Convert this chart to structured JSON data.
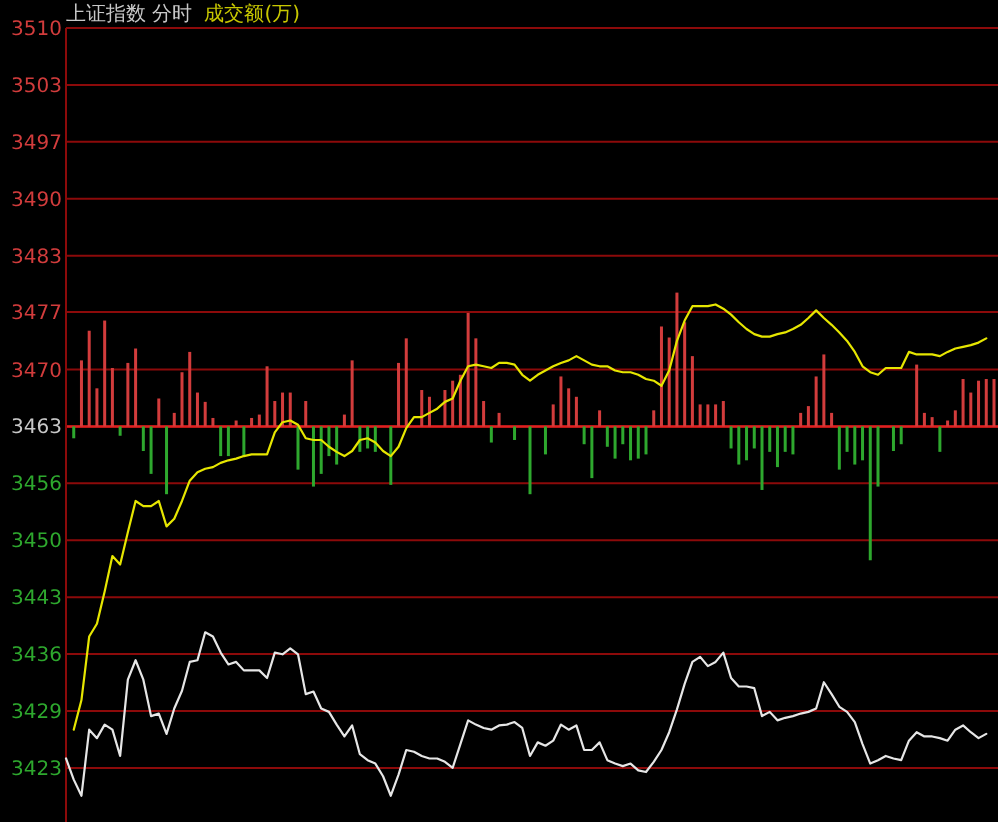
{
  "chart_data": {
    "type": "line",
    "title": "上证指数 分时",
    "annotations": [
      "成交额(万)"
    ],
    "categories": [
      null,
      null,
      null,
      null,
      null,
      null,
      null,
      null,
      null,
      null,
      null,
      null,
      null,
      null,
      null,
      null,
      null,
      null,
      null,
      null,
      null,
      null,
      null,
      null,
      null,
      null,
      null,
      null,
      null,
      null,
      null,
      null,
      null,
      null,
      null,
      null,
      null,
      null,
      null,
      null,
      null,
      null,
      null,
      null,
      null,
      null,
      null,
      null,
      null,
      null,
      null,
      null,
      null,
      null,
      null,
      null,
      null,
      null,
      null,
      null,
      null,
      null,
      null,
      null,
      null,
      null,
      null,
      null,
      null,
      null,
      null,
      null,
      null,
      null,
      null,
      null,
      null,
      null,
      null,
      null,
      null,
      null,
      null,
      null,
      null,
      null,
      null,
      null,
      null,
      null,
      null,
      null,
      null,
      null,
      null,
      null,
      null,
      null,
      null,
      null,
      null,
      null,
      null,
      null,
      null,
      null,
      null,
      null,
      null,
      null,
      null,
      null,
      null,
      null,
      null,
      null,
      null,
      null,
      null,
      null,
      null
    ],
    "ylim": [
      3416.3,
      3510.04
    ],
    "yticks": [
      {
        "value": 3422.68,
        "label": "3423"
      },
      {
        "value": 3429.4,
        "label": "3429"
      },
      {
        "value": 3436.12,
        "label": "3436"
      },
      {
        "value": 3442.84,
        "label": "3443"
      },
      {
        "value": 3449.56,
        "label": "3450"
      },
      {
        "value": 3456.28,
        "label": "3456"
      },
      3463,
      {
        "value": 3469.72,
        "label": "3470"
      },
      {
        "value": 3476.5,
        "label": "3477"
      },
      {
        "value": 3483.16,
        "label": "3483"
      },
      {
        "value": 3489.88,
        "label": "3490"
      },
      {
        "value": 3496.6,
        "label": "3497"
      },
      {
        "value": 3503.32,
        "label": "3503"
      },
      {
        "value": 3510.04,
        "label": "3510"
      }
    ],
    "grid": "y",
    "marker": "none",
    "line_style": "solid",
    "ref_lines": [
      {
        "axis": "y",
        "value": 3463,
        "color": "#e02020"
      }
    ],
    "series": [
      {
        "type": "bar",
        "values": [
          null,
          -1.4,
          7.8,
          11.3,
          4.5,
          12.5,
          6.9,
          -1.1,
          7.5,
          9.2,
          -2.9,
          -5.6,
          3.3,
          -8.0,
          1.6,
          6.4,
          8.8,
          4.0,
          2.9,
          1.0,
          -3.5,
          -3.5,
          0.7,
          -3.5,
          1.0,
          1.4,
          7.1,
          3.0,
          4.0,
          4.0,
          -5.1,
          3.0,
          -7.1,
          -5.6,
          -3.5,
          -4.5,
          1.4,
          7.8,
          -3.0,
          -2.6,
          -3.0,
          null,
          -6.9,
          7.5,
          10.4,
          null,
          4.3,
          3.5,
          null,
          4.3,
          5.4,
          6.1,
          13.4,
          10.4,
          3.0,
          -1.9,
          1.6,
          null,
          -1.6,
          null,
          -8.0,
          null,
          -3.3,
          2.6,
          5.9,
          4.5,
          3.5,
          -2.1,
          -6.1,
          1.9,
          -2.4,
          -3.8,
          -2.1,
          -4.0,
          -3.8,
          -3.3,
          1.9,
          11.8,
          10.5,
          15.8,
          12.3,
          8.3,
          2.6,
          2.6,
          2.6,
          3.0,
          -2.6,
          -4.5,
          -4.0,
          -2.6,
          -7.5,
          -3.0,
          -4.8,
          -3.0,
          -3.3,
          1.6,
          2.4,
          5.9,
          8.5,
          1.6,
          -5.1,
          -3.0,
          -4.5,
          -4.0,
          -15.8,
          -7.1,
          null,
          -2.9,
          -2.1,
          null,
          7.3,
          1.6,
          1.1,
          -3.0,
          0.7,
          1.9,
          5.6,
          4.0,
          5.4,
          5.6,
          5.6
        ],
        "base": [
          null,
          3463,
          3463,
          3463,
          3463,
          3463,
          3463,
          3463,
          3463,
          3463,
          3463,
          3463,
          3463,
          3463,
          3463,
          3463,
          3463,
          3463,
          3463,
          3463,
          3463,
          3463,
          3463,
          3463,
          3463,
          3463,
          3463,
          3463,
          3463,
          3463,
          3463,
          3463,
          3463,
          3463,
          3463,
          3463,
          3463,
          3463,
          3463,
          3463,
          3463,
          null,
          3463,
          3463,
          3463,
          null,
          3463,
          3463,
          null,
          3463,
          3463,
          3463,
          3463,
          3463,
          3463,
          3463,
          3463,
          null,
          3463,
          null,
          3463,
          null,
          3463,
          3463,
          3463,
          3463,
          3463,
          3463,
          3463,
          3463,
          3463,
          3463,
          3463,
          3463,
          3463,
          3463,
          3463,
          3463,
          3463,
          3463,
          3463,
          3463,
          3463,
          3463,
          3463,
          3463,
          3463,
          3463,
          3463,
          3463,
          3463,
          3463,
          3463,
          3463,
          3463,
          3463,
          3463,
          3463,
          3463,
          3463,
          3463,
          3463,
          3463,
          3463,
          3463,
          3463,
          null,
          3463,
          3463,
          null,
          3463,
          3463,
          3463,
          3463,
          3463,
          3463,
          3463,
          3463,
          3463,
          3463,
          3463
        ],
        "colors": [
          null,
          "#2ea82e",
          "#d23c3c",
          "#d23c3c",
          "#d23c3c",
          "#d23c3c",
          "#d23c3c",
          "#2ea82e",
          "#d23c3c",
          "#d23c3c",
          "#2ea82e",
          "#2ea82e",
          "#d23c3c",
          "#2ea82e",
          "#d23c3c",
          "#d23c3c",
          "#d23c3c",
          "#d23c3c",
          "#d23c3c",
          "#d23c3c",
          "#2ea82e",
          "#2ea82e",
          "#d23c3c",
          "#2ea82e",
          "#d23c3c",
          "#d23c3c",
          "#d23c3c",
          "#d23c3c",
          "#d23c3c",
          "#d23c3c",
          "#2ea82e",
          "#d23c3c",
          "#2ea82e",
          "#2ea82e",
          "#2ea82e",
          "#2ea82e",
          "#d23c3c",
          "#d23c3c",
          "#2ea82e",
          "#2ea82e",
          "#2ea82e",
          null,
          "#2ea82e",
          "#d23c3c",
          "#d23c3c",
          null,
          "#d23c3c",
          "#d23c3c",
          null,
          "#d23c3c",
          "#d23c3c",
          "#d23c3c",
          "#d23c3c",
          "#d23c3c",
          "#d23c3c",
          "#2ea82e",
          "#d23c3c",
          null,
          "#2ea82e",
          null,
          "#2ea82e",
          null,
          "#2ea82e",
          "#d23c3c",
          "#d23c3c",
          "#d23c3c",
          "#d23c3c",
          "#2ea82e",
          "#2ea82e",
          "#d23c3c",
          "#2ea82e",
          "#2ea82e",
          "#2ea82e",
          "#2ea82e",
          "#2ea82e",
          "#2ea82e",
          "#d23c3c",
          "#d23c3c",
          "#d23c3c",
          "#d23c3c",
          "#d23c3c",
          "#d23c3c",
          "#d23c3c",
          "#d23c3c",
          "#d23c3c",
          "#d23c3c",
          "#2ea82e",
          "#2ea82e",
          "#2ea82e",
          "#2ea82e",
          "#2ea82e",
          "#2ea82e",
          "#2ea82e",
          "#2ea82e",
          "#2ea82e",
          "#d23c3c",
          "#d23c3c",
          "#d23c3c",
          "#d23c3c",
          "#d23c3c",
          "#2ea82e",
          "#2ea82e",
          "#2ea82e",
          "#2ea82e",
          "#2ea82e",
          "#2ea82e",
          null,
          "#2ea82e",
          "#2ea82e",
          null,
          "#d23c3c",
          "#d23c3c",
          "#d23c3c",
          "#2ea82e",
          "#d23c3c",
          "#d23c3c",
          "#d23c3c",
          "#d23c3c",
          "#d23c3c",
          "#d23c3c",
          "#d23c3c"
        ]
      },
      {
        "color": "#e6e6e6",
        "values": [
          3423.8,
          3421.3,
          3419.4,
          3427.2,
          3426.2,
          3427.8,
          3427.2,
          3424.1,
          3433.1,
          3435.4,
          3433.1,
          3428.8,
          3429.1,
          3426.7,
          3429.7,
          3431.8,
          3435.2,
          3435.4,
          3438.7,
          3438.2,
          3436.3,
          3434.9,
          3435.2,
          3434.2,
          3434.2,
          3434.2,
          3433.3,
          3436.3,
          3436.1,
          3436.8,
          3436.1,
          3431.4,
          3431.7,
          3429.7,
          3429.3,
          3427.8,
          3426.4,
          3427.7,
          3424.3,
          3423.6,
          3423.2,
          3421.7,
          3419.4,
          3421.9,
          3424.8,
          3424.6,
          3424.1,
          3423.8,
          3423.8,
          3423.4,
          3422.7,
          3425.5,
          3428.3,
          3427.8,
          3427.4,
          3427.2,
          3427.7,
          3427.8,
          3428.1,
          3427.4,
          3424.1,
          3425.7,
          3425.3,
          3425.9,
          3427.8,
          3427.2,
          3427.7,
          3424.8,
          3424.8,
          3425.7,
          3423.6,
          3423.2,
          3422.9,
          3423.2,
          3422.4,
          3422.2,
          3423.4,
          3424.8,
          3426.9,
          3429.6,
          3432.6,
          3435.2,
          3435.8,
          3434.7,
          3435.2,
          3436.3,
          3433.3,
          3432.3,
          3432.3,
          3432.1,
          3428.8,
          3429.3,
          3428.3,
          3428.6,
          3428.8,
          3429.1,
          3429.3,
          3429.7,
          3432.8,
          3431.4,
          3429.9,
          3429.3,
          3428.1,
          3425.5,
          3423.2,
          3423.6,
          3424.1,
          3423.8,
          3423.6,
          3425.9,
          3426.9,
          3426.4,
          3426.4,
          3426.2,
          3425.9,
          3427.2,
          3427.7,
          3426.9,
          3426.2,
          3426.7,
          null
        ]
      },
      {
        "color": "#e6e600",
        "values": [
          null,
          3427.2,
          3430.7,
          3438.2,
          3439.7,
          3443.5,
          3447.7,
          3446.7,
          3450.5,
          3454.2,
          3453.6,
          3453.6,
          3454.2,
          3451.2,
          3452.1,
          3454.2,
          3456.6,
          3457.6,
          3458.0,
          3458.2,
          3458.7,
          3459.0,
          3459.2,
          3459.5,
          3459.7,
          3459.7,
          3459.7,
          3462.3,
          3463.5,
          3463.7,
          3463.2,
          3461.6,
          3461.4,
          3461.4,
          3460.6,
          3460.0,
          3459.5,
          3460.1,
          3461.4,
          3461.6,
          3461.1,
          3460.1,
          3459.5,
          3460.6,
          3462.8,
          3464.1,
          3464.1,
          3464.6,
          3465.1,
          3465.9,
          3466.3,
          3468.4,
          3470.1,
          3470.3,
          3470.1,
          3469.9,
          3470.5,
          3470.5,
          3470.3,
          3469.1,
          3468.4,
          3469.1,
          3469.6,
          3470.1,
          3470.5,
          3470.8,
          3471.3,
          3470.8,
          3470.3,
          3470.1,
          3470.1,
          3469.6,
          3469.4,
          3469.4,
          3469.1,
          3468.6,
          3468.4,
          3467.8,
          3469.6,
          3473.1,
          3475.5,
          3477.2,
          3477.2,
          3477.2,
          3477.4,
          3476.9,
          3476.2,
          3475.3,
          3474.5,
          3473.9,
          3473.6,
          3473.6,
          3473.9,
          3474.1,
          3474.5,
          3475.0,
          3475.8,
          3476.7,
          3475.8,
          3475.0,
          3474.1,
          3473.1,
          3471.8,
          3470.1,
          3469.4,
          3469.1,
          3469.9,
          3469.9,
          3469.9,
          3471.8,
          3471.5,
          3471.5,
          3471.5,
          3471.3,
          3471.8,
          3472.2,
          3472.4,
          3472.6,
          3472.9,
          3473.4,
          null
        ]
      }
    ]
  }
}
